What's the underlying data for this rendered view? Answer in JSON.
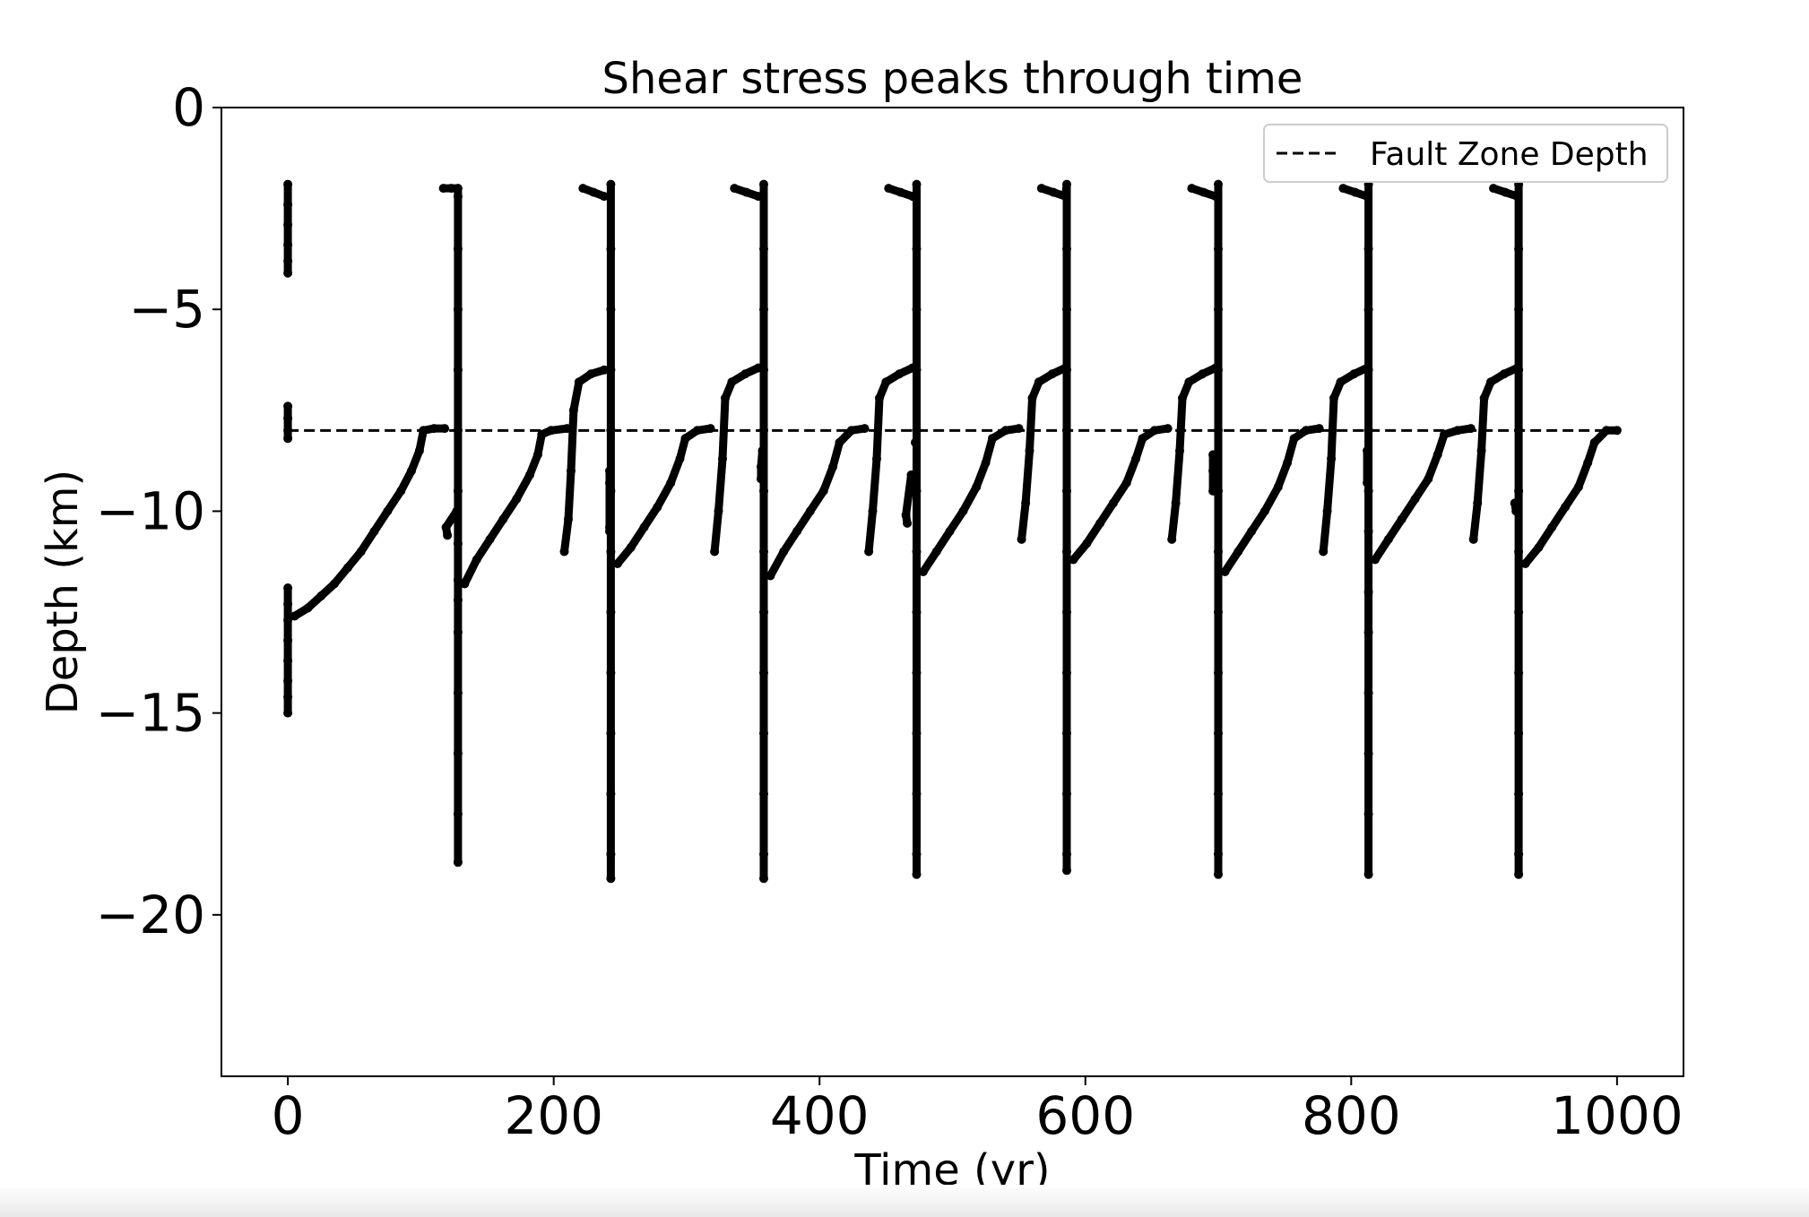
{
  "chart_data": {
    "type": "scatter",
    "title": "Shear stress peaks through time",
    "xlabel": "Time (yr)",
    "ylabel": "Depth (km)",
    "xlim": [
      -50,
      1050
    ],
    "ylim": [
      -24,
      0
    ],
    "xticks": [
      0,
      200,
      400,
      600,
      800,
      1000
    ],
    "xtick_labels": [
      "0",
      "200",
      "400",
      "600",
      "800",
      "1000"
    ],
    "yticks": [
      0,
      -5,
      -10,
      -15,
      -20
    ],
    "ytick_labels": [
      "0",
      "−5",
      "−10",
      "−15",
      "−20"
    ],
    "grid": false,
    "legend": {
      "position": "top-right",
      "entries": [
        "Fault Zone Depth"
      ]
    },
    "marker_color": "#000000",
    "series": [
      {
        "kind": "scatter",
        "points": [
          [
            0,
            -1.9
          ],
          [
            0,
            -2.4
          ],
          [
            0,
            -2.9
          ],
          [
            0,
            -3.4
          ],
          [
            0,
            -3.8
          ],
          [
            0,
            -4.1
          ],
          [
            0,
            -7.4
          ],
          [
            0,
            -7.7
          ],
          [
            0,
            -8.0
          ],
          [
            0,
            -8.2
          ],
          [
            0,
            -11.9
          ],
          [
            0,
            -12.3
          ],
          [
            0,
            -12.7
          ],
          [
            0,
            -13.2
          ],
          [
            0,
            -13.7
          ],
          [
            0,
            -14.2
          ],
          [
            0,
            -14.6
          ],
          [
            0,
            -15.0
          ],
          [
            5,
            -12.6
          ],
          [
            15,
            -12.4
          ],
          [
            25,
            -12.1
          ],
          [
            35,
            -11.8
          ],
          [
            45,
            -11.4
          ],
          [
            55,
            -11.0
          ],
          [
            65,
            -10.5
          ],
          [
            75,
            -10.0
          ],
          [
            85,
            -9.5
          ],
          [
            93,
            -9.0
          ],
          [
            99,
            -8.5
          ],
          [
            102,
            -8.0
          ],
          [
            110,
            -7.95
          ],
          [
            118,
            -7.95
          ],
          [
            120,
            -10.6
          ],
          [
            119,
            -10.4
          ],
          [
            127,
            -10.0
          ],
          [
            117,
            -2.0
          ],
          [
            123,
            -2.0
          ],
          [
            128,
            -2.0
          ],
          [
            128,
            -2.2
          ],
          [
            128,
            -3.5
          ],
          [
            128,
            -5.0
          ],
          [
            128,
            -6.5
          ],
          [
            128,
            -8.0
          ],
          [
            128,
            -9.5
          ],
          [
            128,
            -10.8
          ],
          [
            128,
            -11.7
          ],
          [
            128,
            -12.2
          ],
          [
            128,
            -13.0
          ],
          [
            128,
            -14.5
          ],
          [
            128,
            -16.0
          ],
          [
            128,
            -17.5
          ],
          [
            128,
            -18.7
          ],
          [
            133,
            -11.8
          ],
          [
            142,
            -11.2
          ],
          [
            152,
            -10.7
          ],
          [
            162,
            -10.2
          ],
          [
            172,
            -9.7
          ],
          [
            182,
            -9.1
          ],
          [
            188,
            -8.6
          ],
          [
            191,
            -8.1
          ],
          [
            198,
            -8.0
          ],
          [
            210,
            -7.95
          ],
          [
            208,
            -11.0
          ],
          [
            211,
            -10.2
          ],
          [
            213,
            -9.0
          ],
          [
            215,
            -7.5
          ],
          [
            219,
            -6.8
          ],
          [
            228,
            -6.6
          ],
          [
            238,
            -6.5
          ],
          [
            222,
            -2.0
          ],
          [
            230,
            -2.1
          ],
          [
            238,
            -2.2
          ],
          [
            242,
            -9.0
          ],
          [
            242,
            -9.3
          ],
          [
            242,
            -10.4
          ],
          [
            242,
            -10.5
          ],
          [
            243,
            -1.9
          ],
          [
            243,
            -3.5
          ],
          [
            243,
            -5.0
          ],
          [
            243,
            -6.5
          ],
          [
            243,
            -8.0
          ],
          [
            243,
            -9.5
          ],
          [
            243,
            -11.0
          ],
          [
            243,
            -12.5
          ],
          [
            243,
            -14.0
          ],
          [
            243,
            -15.5
          ],
          [
            243,
            -17.0
          ],
          [
            243,
            -18.5
          ],
          [
            243,
            -19.1
          ],
          [
            248,
            -11.3
          ],
          [
            258,
            -10.9
          ],
          [
            268,
            -10.4
          ],
          [
            278,
            -9.9
          ],
          [
            288,
            -9.3
          ],
          [
            295,
            -8.7
          ],
          [
            299,
            -8.2
          ],
          [
            308,
            -8.0
          ],
          [
            318,
            -7.95
          ],
          [
            321,
            -11.0
          ],
          [
            324,
            -10.0
          ],
          [
            327,
            -8.7
          ],
          [
            329,
            -7.2
          ],
          [
            334,
            -6.8
          ],
          [
            344,
            -6.6
          ],
          [
            354,
            -6.45
          ],
          [
            336,
            -2.0
          ],
          [
            345,
            -2.1
          ],
          [
            354,
            -2.2
          ],
          [
            357,
            -8.5
          ],
          [
            356,
            -8.9
          ],
          [
            356,
            -9.2
          ],
          [
            358,
            -1.9
          ],
          [
            358,
            -3.5
          ],
          [
            358,
            -5.0
          ],
          [
            358,
            -6.5
          ],
          [
            358,
            -8.0
          ],
          [
            358,
            -9.5
          ],
          [
            358,
            -11.0
          ],
          [
            358,
            -12.5
          ],
          [
            358,
            -14.0
          ],
          [
            358,
            -15.5
          ],
          [
            358,
            -17.0
          ],
          [
            358,
            -18.5
          ],
          [
            358,
            -19.1
          ],
          [
            363,
            -11.6
          ],
          [
            373,
            -11.0
          ],
          [
            383,
            -10.5
          ],
          [
            393,
            -10.0
          ],
          [
            403,
            -9.5
          ],
          [
            410,
            -8.9
          ],
          [
            415,
            -8.3
          ],
          [
            424,
            -8.0
          ],
          [
            434,
            -7.95
          ],
          [
            437,
            -11.0
          ],
          [
            440,
            -10.0
          ],
          [
            443,
            -8.7
          ],
          [
            445,
            -7.2
          ],
          [
            450,
            -6.8
          ],
          [
            460,
            -6.6
          ],
          [
            470,
            -6.45
          ],
          [
            452,
            -2.0
          ],
          [
            461,
            -2.1
          ],
          [
            470,
            -2.2
          ],
          [
            469,
            -9.1
          ],
          [
            465,
            -10.1
          ],
          [
            466,
            -10.3
          ],
          [
            472,
            -8.3
          ],
          [
            473,
            -1.9
          ],
          [
            473,
            -3.5
          ],
          [
            473,
            -5.0
          ],
          [
            473,
            -6.5
          ],
          [
            473,
            -8.0
          ],
          [
            473,
            -9.5
          ],
          [
            473,
            -11.0
          ],
          [
            473,
            -12.5
          ],
          [
            473,
            -14.0
          ],
          [
            473,
            -15.5
          ],
          [
            473,
            -17.0
          ],
          [
            473,
            -18.5
          ],
          [
            473,
            -19.0
          ],
          [
            478,
            -11.5
          ],
          [
            488,
            -11.0
          ],
          [
            498,
            -10.5
          ],
          [
            508,
            -10.0
          ],
          [
            518,
            -9.4
          ],
          [
            525,
            -8.8
          ],
          [
            530,
            -8.2
          ],
          [
            540,
            -8.0
          ],
          [
            550,
            -7.95
          ],
          [
            552,
            -10.7
          ],
          [
            555,
            -9.8
          ],
          [
            558,
            -8.5
          ],
          [
            560,
            -7.2
          ],
          [
            565,
            -6.8
          ],
          [
            575,
            -6.6
          ],
          [
            585,
            -6.45
          ],
          [
            567,
            -2.0
          ],
          [
            576,
            -2.1
          ],
          [
            585,
            -2.2
          ],
          [
            586,
            -1.9
          ],
          [
            586,
            -3.5
          ],
          [
            586,
            -5.0
          ],
          [
            586,
            -6.5
          ],
          [
            586,
            -8.0
          ],
          [
            586,
            -9.5
          ],
          [
            586,
            -11.0
          ],
          [
            586,
            -12.5
          ],
          [
            586,
            -14.0
          ],
          [
            586,
            -15.5
          ],
          [
            586,
            -17.0
          ],
          [
            586,
            -18.5
          ],
          [
            586,
            -18.9
          ],
          [
            591,
            -11.2
          ],
          [
            601,
            -10.8
          ],
          [
            611,
            -10.3
          ],
          [
            621,
            -9.8
          ],
          [
            631,
            -9.3
          ],
          [
            638,
            -8.7
          ],
          [
            643,
            -8.2
          ],
          [
            652,
            -8.0
          ],
          [
            662,
            -7.95
          ],
          [
            665,
            -10.7
          ],
          [
            668,
            -9.8
          ],
          [
            671,
            -8.5
          ],
          [
            673,
            -7.2
          ],
          [
            678,
            -6.8
          ],
          [
            688,
            -6.6
          ],
          [
            698,
            -6.45
          ],
          [
            680,
            -2.0
          ],
          [
            689,
            -2.1
          ],
          [
            698,
            -2.2
          ],
          [
            696,
            -8.6
          ],
          [
            696,
            -9.0
          ],
          [
            696,
            -9.5
          ],
          [
            700,
            -1.9
          ],
          [
            700,
            -3.5
          ],
          [
            700,
            -5.0
          ],
          [
            700,
            -6.5
          ],
          [
            700,
            -8.0
          ],
          [
            700,
            -9.5
          ],
          [
            700,
            -11.0
          ],
          [
            700,
            -12.5
          ],
          [
            700,
            -14.0
          ],
          [
            700,
            -15.5
          ],
          [
            700,
            -17.0
          ],
          [
            700,
            -18.5
          ],
          [
            700,
            -19.0
          ],
          [
            705,
            -11.5
          ],
          [
            715,
            -11.0
          ],
          [
            725,
            -10.5
          ],
          [
            735,
            -10.0
          ],
          [
            745,
            -9.4
          ],
          [
            752,
            -8.8
          ],
          [
            757,
            -8.2
          ],
          [
            766,
            -8.0
          ],
          [
            776,
            -7.95
          ],
          [
            779,
            -11.0
          ],
          [
            782,
            -10.0
          ],
          [
            785,
            -8.7
          ],
          [
            787,
            -7.2
          ],
          [
            792,
            -6.8
          ],
          [
            802,
            -6.6
          ],
          [
            812,
            -6.45
          ],
          [
            794,
            -2.0
          ],
          [
            803,
            -2.1
          ],
          [
            812,
            -2.2
          ],
          [
            812,
            -8.5
          ],
          [
            812,
            -9.3
          ],
          [
            813,
            -1.9
          ],
          [
            813,
            -3.5
          ],
          [
            813,
            -5.0
          ],
          [
            813,
            -6.5
          ],
          [
            813,
            -8.0
          ],
          [
            813,
            -9.5
          ],
          [
            813,
            -10.5
          ],
          [
            813,
            -12.0
          ],
          [
            813,
            -13.0
          ],
          [
            813,
            -14.5
          ],
          [
            813,
            -16.0
          ],
          [
            813,
            -17.5
          ],
          [
            813,
            -19.0
          ],
          [
            818,
            -11.2
          ],
          [
            828,
            -10.7
          ],
          [
            838,
            -10.2
          ],
          [
            848,
            -9.7
          ],
          [
            858,
            -9.2
          ],
          [
            865,
            -8.6
          ],
          [
            870,
            -8.1
          ],
          [
            880,
            -8.0
          ],
          [
            890,
            -7.95
          ],
          [
            892,
            -10.7
          ],
          [
            895,
            -9.8
          ],
          [
            898,
            -8.5
          ],
          [
            900,
            -7.2
          ],
          [
            905,
            -6.8
          ],
          [
            915,
            -6.6
          ],
          [
            925,
            -6.45
          ],
          [
            907,
            -2.0
          ],
          [
            916,
            -2.1
          ],
          [
            925,
            -2.2
          ],
          [
            923,
            -9.8
          ],
          [
            924,
            -10.0
          ],
          [
            926,
            -1.9
          ],
          [
            926,
            -3.5
          ],
          [
            926,
            -5.0
          ],
          [
            926,
            -6.5
          ],
          [
            926,
            -8.0
          ],
          [
            926,
            -9.5
          ],
          [
            926,
            -11.0
          ],
          [
            926,
            -12.5
          ],
          [
            926,
            -14.0
          ],
          [
            926,
            -15.5
          ],
          [
            926,
            -17.0
          ],
          [
            926,
            -18.5
          ],
          [
            926,
            -19.0
          ],
          [
            931,
            -11.3
          ],
          [
            941,
            -10.9
          ],
          [
            951,
            -10.4
          ],
          [
            961,
            -9.9
          ],
          [
            971,
            -9.4
          ],
          [
            978,
            -8.8
          ],
          [
            983,
            -8.3
          ],
          [
            992,
            -8.0
          ],
          [
            1000,
            -8.0
          ]
        ]
      },
      {
        "kind": "dashed-line",
        "name": "Fault Zone Depth",
        "x": [
          0,
          1000
        ],
        "y": [
          -8,
          -8
        ]
      }
    ]
  }
}
